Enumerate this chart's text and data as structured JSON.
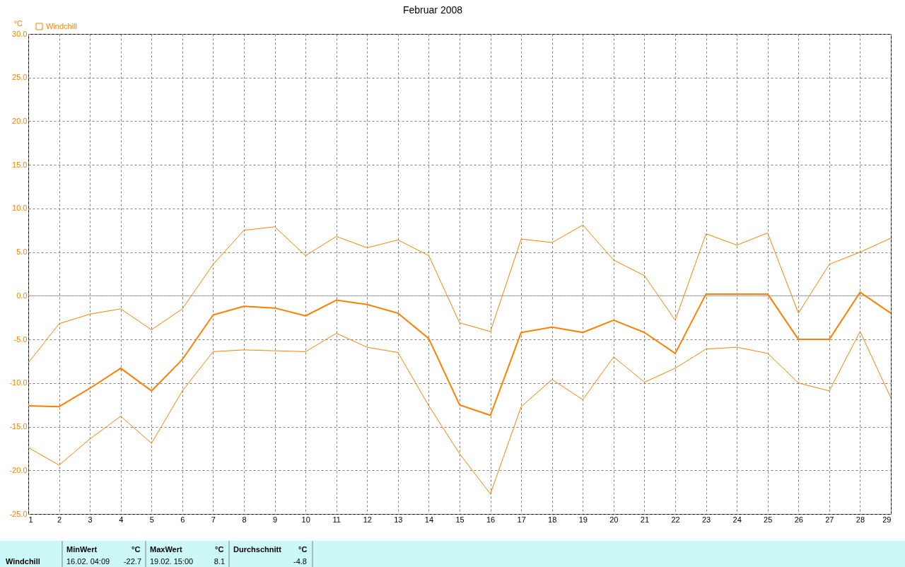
{
  "chart_data": {
    "type": "line",
    "title": "Februar 2008",
    "ylabel": "°C",
    "x": [
      1,
      2,
      3,
      4,
      5,
      6,
      7,
      8,
      9,
      10,
      11,
      12,
      13,
      14,
      15,
      16,
      17,
      18,
      19,
      20,
      21,
      22,
      23,
      24,
      25,
      26,
      27,
      28,
      29
    ],
    "series": [
      {
        "color": "#ff8000",
        "values": [
          -7.7,
          -3.2,
          -2.1,
          -1.5,
          -3.9,
          -1.5,
          3.6,
          7.5,
          7.9,
          4.6,
          6.8,
          5.5,
          6.4,
          4.6,
          -3.1,
          -4.1,
          6.5,
          6.1,
          8.1,
          4.1,
          2.3,
          -2.8,
          7.1,
          5.8,
          7.2,
          -2.0,
          3.6,
          5.0,
          6.6
        ]
      },
      {
        "name": "Windchill",
        "color": "#ff8000",
        "values": [
          -12.6,
          -12.7,
          -10.6,
          -8.3,
          -10.9,
          -7.3,
          -2.2,
          -1.2,
          -1.4,
          -2.3,
          -0.5,
          -1.0,
          -2.0,
          -4.9,
          -12.5,
          -13.7,
          -4.2,
          -3.6,
          -4.2,
          -2.8,
          -4.2,
          -6.6,
          0.2,
          0.2,
          0.2,
          -5.0,
          -5.0,
          0.4,
          -2.0
        ]
      },
      {
        "color": "#ff8000",
        "values": [
          -17.4,
          -19.4,
          -16.4,
          -13.8,
          -16.9,
          -10.9,
          -6.4,
          -6.2,
          -6.3,
          -6.4,
          -4.3,
          -5.9,
          -6.5,
          -12.6,
          -18.1,
          -22.7,
          -12.7,
          -9.6,
          -11.9,
          -7.0,
          -9.9,
          -8.3,
          -6.1,
          -5.9,
          -6.6,
          -10.0,
          -10.9,
          -4.1,
          -11.7
        ]
      }
    ],
    "xlim": [
      1,
      29
    ],
    "xticks": [
      1,
      2,
      3,
      4,
      5,
      6,
      7,
      8,
      9,
      10,
      11,
      12,
      13,
      14,
      15,
      16,
      17,
      18,
      19,
      20,
      21,
      22,
      23,
      24,
      25,
      26,
      27,
      28,
      29
    ],
    "ylim": [
      -25,
      30
    ],
    "yticks": [
      {
        "value": -25,
        "label": "-25.0"
      },
      {
        "value": -20,
        "label": "-20.0"
      },
      {
        "value": -15,
        "label": "-15.0"
      },
      {
        "value": -10,
        "label": "-10.0"
      },
      {
        "value": -5,
        "label": "-5.0"
      },
      {
        "value": 0,
        "label": "0.0"
      },
      {
        "value": 5,
        "label": "5.0"
      },
      {
        "value": 10,
        "label": "10.0"
      },
      {
        "value": 15,
        "label": "15.0"
      },
      {
        "value": 20,
        "label": "20.0"
      },
      {
        "value": 25,
        "label": "25.0"
      },
      {
        "value": 30,
        "label": "30.0"
      }
    ],
    "ref_lines": [
      {
        "axis": "y",
        "value": 0,
        "color": "#a0a0a0"
      }
    ],
    "grid": true,
    "legend": "top left",
    "marker": "none",
    "line_style": "solid",
    "annotations": [
      "Windchill",
      "MinWert",
      "°C",
      "16.02.  04:09",
      "-22.7",
      "MaxWert",
      "°C",
      "19.02.  15:00",
      "8.1",
      "Durchschnitt",
      "°C",
      "-4.8"
    ]
  }
}
